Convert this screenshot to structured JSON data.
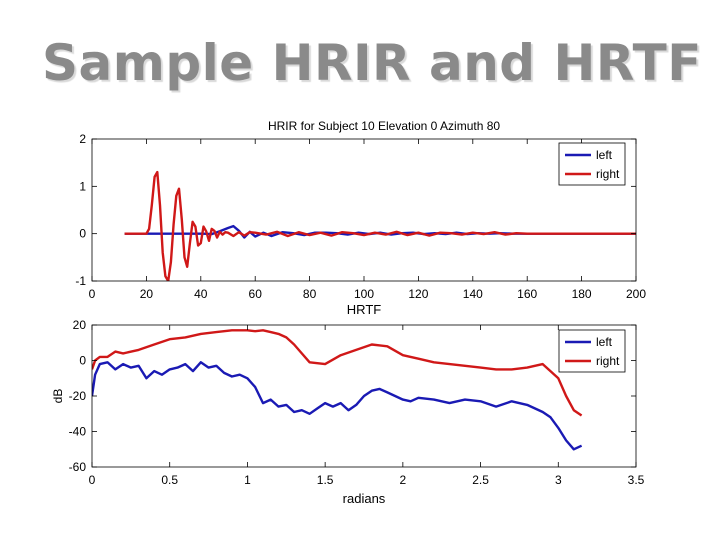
{
  "slide": {
    "title": "Sample HRIR and HRTF"
  },
  "chart_data": [
    {
      "type": "line",
      "title": "HRIR for Subject 10 Elevation 0 Azimuth 80",
      "xlabel": "HRTF",
      "ylabel": "",
      "xlim": [
        0,
        200
      ],
      "ylim": [
        -1,
        2
      ],
      "xticks": [
        "0",
        "20",
        "40",
        "60",
        "80",
        "100",
        "120",
        "140",
        "160",
        "180",
        "200"
      ],
      "yticks": [
        "-1",
        "0",
        "1",
        "2"
      ],
      "legend_position": "top-right",
      "grid": false,
      "series": [
        {
          "name": "left",
          "color": "#1a1ab4",
          "x": [
            12,
            20,
            24,
            28,
            32,
            35,
            38,
            41,
            44,
            47,
            50,
            52,
            54,
            56,
            58,
            60,
            63,
            66,
            70,
            74,
            78,
            82,
            86,
            90,
            94,
            98,
            102,
            106,
            110,
            114,
            118,
            122,
            126,
            130,
            134,
            138,
            142,
            146,
            150,
            155,
            160,
            170,
            180,
            190,
            200
          ],
          "y": [
            0,
            0,
            0,
            0,
            0,
            0,
            0,
            0,
            -0.01,
            0.05,
            0.12,
            0.16,
            0.06,
            -0.08,
            0.04,
            -0.06,
            0.02,
            -0.05,
            0.03,
            0.01,
            -0.03,
            0.02,
            0.02,
            0.01,
            -0.02,
            0.02,
            -0.01,
            0.02,
            -0.02,
            0.01,
            0.02,
            -0.01,
            0.01,
            -0.01,
            0.02,
            -0.01,
            0.01,
            0,
            0.01,
            0,
            0,
            0,
            0,
            0,
            0
          ]
        },
        {
          "name": "right",
          "color": "#d01818",
          "x": [
            12,
            20,
            21,
            22,
            23,
            24,
            25,
            26,
            27,
            28,
            29,
            30,
            31,
            32,
            33,
            34,
            35,
            36,
            37,
            38,
            39,
            40,
            41,
            42,
            43,
            44,
            45,
            46,
            47,
            48,
            49,
            50,
            52,
            54,
            56,
            58,
            60,
            64,
            68,
            72,
            76,
            80,
            84,
            88,
            92,
            96,
            100,
            104,
            108,
            112,
            116,
            120,
            124,
            128,
            132,
            136,
            140,
            144,
            148,
            152,
            156,
            160,
            170,
            180,
            190,
            200
          ],
          "y": [
            0,
            0,
            0.1,
            0.6,
            1.2,
            1.3,
            0.6,
            -0.4,
            -0.9,
            -1.0,
            -0.6,
            0.2,
            0.8,
            0.95,
            0.3,
            -0.5,
            -0.7,
            -0.2,
            0.25,
            0.15,
            -0.25,
            -0.2,
            0.15,
            0.05,
            -0.15,
            0.1,
            0.06,
            -0.08,
            0.04,
            -0.02,
            0.03,
            0.02,
            -0.05,
            0.03,
            -0.04,
            0.03,
            0.02,
            -0.02,
            0.04,
            -0.05,
            0.03,
            -0.03,
            0.02,
            -0.04,
            0.03,
            0.01,
            -0.03,
            0.02,
            -0.02,
            0.04,
            -0.03,
            0.02,
            -0.04,
            0.02,
            0.01,
            -0.02,
            0.02,
            -0.01,
            0.03,
            -0.02,
            0.01,
            0,
            0,
            0,
            0,
            0
          ]
        }
      ]
    },
    {
      "type": "line",
      "title": "",
      "xlabel": "radians",
      "ylabel": "dB",
      "xlim": [
        0,
        3.5
      ],
      "ylim": [
        -60,
        20
      ],
      "xticks": [
        "0",
        "0.5",
        "1",
        "1.5",
        "2",
        "2.5",
        "3",
        "3.5"
      ],
      "yticks": [
        "-60",
        "-40",
        "-20",
        "0",
        "20"
      ],
      "legend_position": "top-right",
      "grid": false,
      "series": [
        {
          "name": "left",
          "color": "#1a1ab4",
          "x": [
            0,
            0.02,
            0.05,
            0.1,
            0.15,
            0.2,
            0.25,
            0.3,
            0.35,
            0.4,
            0.45,
            0.5,
            0.55,
            0.6,
            0.65,
            0.7,
            0.75,
            0.8,
            0.85,
            0.9,
            0.95,
            1,
            1.05,
            1.1,
            1.15,
            1.2,
            1.25,
            1.3,
            1.35,
            1.4,
            1.45,
            1.5,
            1.55,
            1.6,
            1.65,
            1.7,
            1.75,
            1.8,
            1.85,
            1.9,
            1.95,
            2,
            2.05,
            2.1,
            2.2,
            2.3,
            2.4,
            2.5,
            2.6,
            2.7,
            2.8,
            2.9,
            2.95,
            3,
            3.05,
            3.1,
            3.15
          ],
          "y": [
            -20,
            -8,
            -2,
            -1,
            -5,
            -2,
            -4,
            -3,
            -10,
            -6,
            -8,
            -5,
            -4,
            -2,
            -6,
            -1,
            -4,
            -3,
            -7,
            -9,
            -8,
            -10,
            -15,
            -24,
            -22,
            -26,
            -25,
            -29,
            -28,
            -30,
            -27,
            -24,
            -26,
            -24,
            -28,
            -25,
            -20,
            -17,
            -16,
            -18,
            -20,
            -22,
            -23,
            -21,
            -22,
            -24,
            -22,
            -23,
            -26,
            -23,
            -25,
            -29,
            -32,
            -38,
            -45,
            -50,
            -48
          ]
        },
        {
          "name": "right",
          "color": "#d01818",
          "x": [
            0,
            0.02,
            0.05,
            0.1,
            0.15,
            0.2,
            0.3,
            0.4,
            0.5,
            0.6,
            0.7,
            0.8,
            0.9,
            1,
            1.05,
            1.1,
            1.15,
            1.2,
            1.25,
            1.3,
            1.35,
            1.4,
            1.5,
            1.6,
            1.7,
            1.8,
            1.9,
            2,
            2.1,
            2.2,
            2.3,
            2.4,
            2.5,
            2.6,
            2.7,
            2.8,
            2.9,
            3,
            3.05,
            3.1,
            3.15
          ],
          "y": [
            -5,
            0,
            2,
            2,
            5,
            4,
            6,
            9,
            12,
            13,
            15,
            16,
            17,
            17,
            16.5,
            17,
            16,
            15,
            13,
            9,
            4,
            -1,
            -2,
            3,
            6,
            9,
            8,
            3,
            1,
            -1,
            -2,
            -3,
            -4,
            -5,
            -5,
            -4,
            -2,
            -10,
            -20,
            -28,
            -31
          ]
        }
      ]
    }
  ]
}
